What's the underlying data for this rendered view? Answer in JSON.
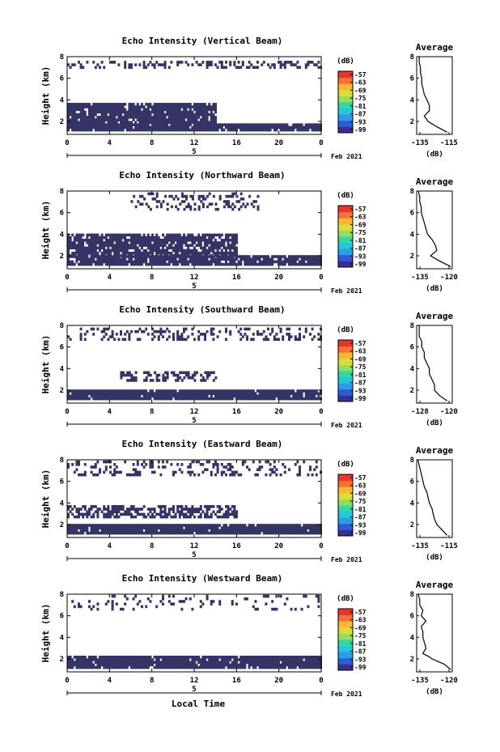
{
  "figure": {
    "shared_xlabel": "Local Time",
    "date_label": "Feb 2021",
    "day_label": "5",
    "heatmap_color": "#343566",
    "colormap": [
      "#3a2f8c",
      "#2f5bd6",
      "#2f9ae8",
      "#22c8d8",
      "#35d6a0",
      "#8fe060",
      "#d9dc3a",
      "#f7b733",
      "#f4713a",
      "#e8352e"
    ]
  },
  "chart_data": [
    {
      "type": "heatmap",
      "title": "Echo Intensity (Vertical Beam)",
      "xlabel": "",
      "ylabel": "Height (km)",
      "xlim": [
        0,
        24
      ],
      "ylim": [
        0.8,
        8
      ],
      "xticks": [
        "0",
        "4",
        "8",
        "12",
        "16",
        "20",
        "0"
      ],
      "yticks": [
        "2",
        "4",
        "6",
        "8"
      ],
      "colorbar": {
        "label": "(dB)",
        "ticks": [
          "-57",
          "-63",
          "-69",
          "-75",
          "-81",
          "-87",
          "-93",
          "-99"
        ]
      },
      "layers": [
        {
          "x": [
            0,
            24
          ],
          "y_bottom": 1.1,
          "y_top": 1.8,
          "density": 0.95
        },
        {
          "x": [
            0,
            14
          ],
          "y_bottom": 1.8,
          "y_top": 3.5,
          "density": 0.9
        },
        {
          "x": [
            0,
            24
          ],
          "y_bottom": 6.9,
          "y_top": 7.6,
          "density": 0.35
        }
      ],
      "profile": {
        "title": "Average",
        "xlabel": "(dB)",
        "xticks": [
          "-135",
          "-115"
        ],
        "xlim": [
          -140,
          -112
        ],
        "yticks": [
          "2",
          "4",
          "6",
          "8"
        ],
        "ylim": [
          0.8,
          8
        ],
        "heights": [
          1.0,
          1.5,
          2.0,
          2.5,
          3.0,
          3.5,
          4.0,
          4.5,
          5.0,
          5.5,
          6.0,
          6.5,
          7.0,
          7.5,
          8.0
        ],
        "values": [
          -116,
          -124,
          -131,
          -134,
          -130,
          -130,
          -132,
          -134,
          -135,
          -136,
          -136,
          -137,
          -137,
          -138,
          -138
        ]
      }
    },
    {
      "type": "heatmap",
      "title": "Echo Intensity (Northward Beam)",
      "xlabel": "",
      "ylabel": "Height (km)",
      "xlim": [
        0,
        24
      ],
      "ylim": [
        0.8,
        8
      ],
      "xticks": [
        "0",
        "4",
        "8",
        "12",
        "16",
        "20",
        "0"
      ],
      "yticks": [
        "2",
        "4",
        "6",
        "8"
      ],
      "colorbar": {
        "label": "(dB)",
        "ticks": [
          "-57",
          "-63",
          "-69",
          "-75",
          "-81",
          "-87",
          "-93",
          "-99"
        ]
      },
      "layers": [
        {
          "x": [
            0,
            24
          ],
          "y_bottom": 1.1,
          "y_top": 1.9,
          "density": 0.9
        },
        {
          "x": [
            0,
            16
          ],
          "y_bottom": 1.9,
          "y_top": 3.9,
          "density": 0.85
        },
        {
          "x": [
            6,
            18
          ],
          "y_bottom": 6.2,
          "y_top": 7.8,
          "density": 0.3
        }
      ],
      "profile": {
        "title": "Average",
        "xlabel": "(dB)",
        "xticks": [
          "-135",
          "-120"
        ],
        "xlim": [
          -140,
          -117
        ],
        "yticks": [
          "2",
          "4",
          "6",
          "8"
        ],
        "ylim": [
          0.8,
          8
        ],
        "heights": [
          1.0,
          1.5,
          2.0,
          2.5,
          3.0,
          3.5,
          4.0,
          4.5,
          5.0,
          5.5,
          6.0,
          6.5,
          7.0,
          7.5,
          8.0
        ],
        "values": [
          -118,
          -125,
          -131,
          -127,
          -128,
          -130,
          -133,
          -134,
          -135,
          -136,
          -137,
          -137,
          -138,
          -138,
          -139
        ]
      }
    },
    {
      "type": "heatmap",
      "title": "Echo Intensity (Southward Beam)",
      "xlabel": "",
      "ylabel": "Height (km)",
      "xlim": [
        0,
        24
      ],
      "ylim": [
        0.8,
        8
      ],
      "xticks": [
        "0",
        "4",
        "8",
        "12",
        "16",
        "20",
        "0"
      ],
      "yticks": [
        "2",
        "4",
        "6",
        "8"
      ],
      "colorbar": {
        "label": "(dB)",
        "ticks": [
          "-57",
          "-63",
          "-69",
          "-75",
          "-81",
          "-87",
          "-93",
          "-99"
        ]
      },
      "layers": [
        {
          "x": [
            0,
            24
          ],
          "y_bottom": 1.1,
          "y_top": 2.0,
          "density": 0.95
        },
        {
          "x": [
            5,
            14
          ],
          "y_bottom": 2.8,
          "y_top": 3.6,
          "density": 0.5
        },
        {
          "x": [
            0,
            24
          ],
          "y_bottom": 6.6,
          "y_top": 7.8,
          "density": 0.25
        }
      ],
      "profile": {
        "title": "Average",
        "xlabel": "(dB)",
        "xticks": [
          "-128",
          "-120"
        ],
        "xlim": [
          -131,
          -117
        ],
        "yticks": [
          "2",
          "4",
          "6",
          "8"
        ],
        "ylim": [
          0.8,
          8
        ],
        "heights": [
          1.0,
          1.5,
          2.0,
          2.5,
          3.0,
          3.5,
          4.0,
          4.5,
          5.0,
          5.5,
          6.0,
          6.5,
          7.0,
          7.5,
          8.0
        ],
        "values": [
          -119,
          -122,
          -124,
          -124,
          -125,
          -126,
          -126,
          -127,
          -128,
          -128,
          -129,
          -129,
          -130,
          -130,
          -130
        ]
      }
    },
    {
      "type": "heatmap",
      "title": "Echo Intensity (Eastward Beam)",
      "xlabel": "",
      "ylabel": "Height (km)",
      "xlim": [
        0,
        24
      ],
      "ylim": [
        0.8,
        8
      ],
      "xticks": [
        "0",
        "4",
        "8",
        "12",
        "16",
        "20",
        "0"
      ],
      "yticks": [
        "2",
        "4",
        "6",
        "8"
      ],
      "colorbar": {
        "label": "(dB)",
        "ticks": [
          "-57",
          "-63",
          "-69",
          "-75",
          "-81",
          "-87",
          "-93",
          "-99"
        ]
      },
      "layers": [
        {
          "x": [
            0,
            24
          ],
          "y_bottom": 1.1,
          "y_top": 2.0,
          "density": 0.95
        },
        {
          "x": [
            0,
            16
          ],
          "y_bottom": 2.6,
          "y_top": 3.8,
          "density": 0.6
        },
        {
          "x": [
            0,
            24
          ],
          "y_bottom": 6.5,
          "y_top": 7.8,
          "density": 0.25
        }
      ],
      "profile": {
        "title": "Average",
        "xlabel": "(dB)",
        "xticks": [
          "-135",
          "-115"
        ],
        "xlim": [
          -140,
          -112
        ],
        "yticks": [
          "2",
          "4",
          "6",
          "8"
        ],
        "ylim": [
          0.8,
          8
        ],
        "heights": [
          1.0,
          1.5,
          2.0,
          2.5,
          3.0,
          3.5,
          4.0,
          4.5,
          5.0,
          5.5,
          6.0,
          6.5,
          7.0,
          7.5,
          8.0
        ],
        "values": [
          -116,
          -120,
          -124,
          -126,
          -127,
          -128,
          -130,
          -131,
          -132,
          -134,
          -135,
          -136,
          -137,
          -138,
          -139
        ]
      }
    },
    {
      "type": "heatmap",
      "title": "Echo Intensity (Westward Beam)",
      "xlabel": "Local Time",
      "ylabel": "Height (km)",
      "xlim": [
        0,
        24
      ],
      "ylim": [
        0.8,
        8
      ],
      "xticks": [
        "0",
        "4",
        "8",
        "12",
        "16",
        "20",
        "0"
      ],
      "yticks": [
        "2",
        "4",
        "6",
        "8"
      ],
      "colorbar": {
        "label": "(dB)",
        "ticks": [
          "-57",
          "-63",
          "-69",
          "-75",
          "-81",
          "-87",
          "-93",
          "-99"
        ]
      },
      "layers": [
        {
          "x": [
            0,
            24
          ],
          "y_bottom": 1.1,
          "y_top": 2.2,
          "density": 0.95
        },
        {
          "x": [
            0,
            24
          ],
          "y_bottom": 6.5,
          "y_top": 7.9,
          "density": 0.12
        }
      ],
      "profile": {
        "title": "Average",
        "xlabel": "(dB)",
        "xticks": [
          "-135",
          "-120"
        ],
        "xlim": [
          -140,
          -117
        ],
        "yticks": [
          "2",
          "4",
          "6",
          "8"
        ],
        "ylim": [
          0.8,
          8
        ],
        "heights": [
          1.0,
          1.5,
          2.0,
          2.2,
          2.5,
          3.0,
          3.5,
          4.0,
          4.5,
          5.0,
          5.5,
          6.0,
          6.5,
          7.0,
          7.5,
          8.0
        ],
        "values": [
          -118,
          -122,
          -130,
          -132,
          -136,
          -134,
          -135,
          -136,
          -136,
          -137,
          -134,
          -137,
          -136,
          -138,
          -138,
          -139
        ]
      }
    }
  ]
}
